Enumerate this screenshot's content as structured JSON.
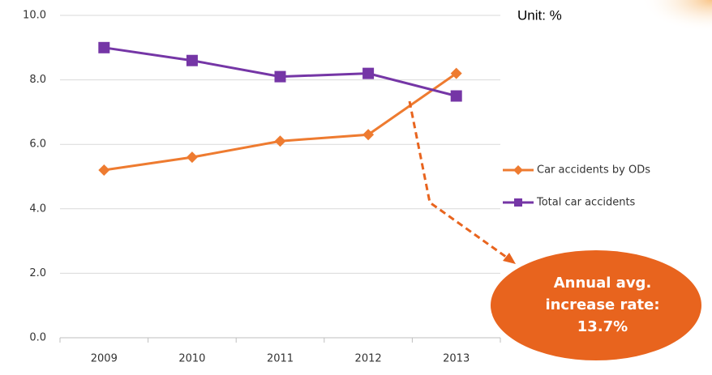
{
  "chart_data": {
    "type": "line",
    "categories": [
      "2009",
      "2010",
      "2011",
      "2012",
      "2013"
    ],
    "series": [
      {
        "name": "Car accidents by ODs",
        "color": "#ee7b30",
        "marker": "diamond",
        "values": [
          5.2,
          5.6,
          6.1,
          6.3,
          8.2
        ]
      },
      {
        "name": "Total car accidents",
        "color": "#7536a6",
        "marker": "square",
        "values": [
          9.0,
          8.6,
          8.1,
          8.2,
          7.5
        ]
      }
    ],
    "ylim": [
      0,
      10
    ],
    "yticks": [
      {
        "value": 0,
        "label": "0.0"
      },
      {
        "value": 2,
        "label": "2.0"
      },
      {
        "value": 4,
        "label": "4.0"
      },
      {
        "value": 6,
        "label": "6.0"
      },
      {
        "value": 8,
        "label": "8.0"
      },
      {
        "value": 10,
        "label": "10.0"
      }
    ],
    "grid": true,
    "legend": "right",
    "unit_label": "Unit: %",
    "annotation": [
      "Annual avg.",
      "increase rate:",
      "13.7%"
    ],
    "annotation_color": "#e8641e"
  }
}
